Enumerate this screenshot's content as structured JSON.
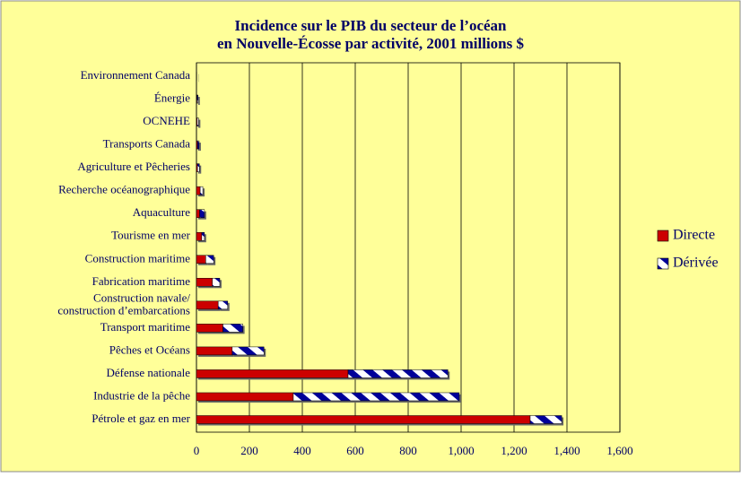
{
  "chart_data": {
    "type": "hbar_stacked",
    "title": "Incidence sur le PIB du secteur de l’océan\nen Nouvelle-Écosse par activité, 2001 millions $",
    "categories": [
      "Environnement Canada",
      "Énergie",
      "OCNEHE",
      "Transports Canada",
      "Agriculture et Pêcheries",
      "Recherche océanographique",
      "Aquaculture",
      "Tourisme en mer",
      "Construction maritime",
      "Fabrication maritime",
      "Construction navale/\nconstruction d’embarcations",
      "Transport maritime",
      "Pêches et Océans",
      "Défense nationale",
      "Industrie de la pêche",
      "Pétrole et gaz en mer"
    ],
    "series": [
      {
        "name": "Directe",
        "color": "#cc0000",
        "pattern": "solid",
        "values": [
          0,
          2,
          3,
          4,
          4,
          14,
          12,
          20,
          35,
          60,
          82,
          100,
          135,
          573,
          366,
          1261
        ]
      },
      {
        "name": "Dérivée",
        "color": "#000099",
        "pattern": "stripes",
        "values": [
          1,
          4,
          5,
          6,
          7,
          10,
          18,
          10,
          30,
          28,
          36,
          75,
          120,
          377,
          627,
          119
        ]
      }
    ],
    "xlim": [
      0,
      1600
    ],
    "xticks": [
      0,
      200,
      400,
      600,
      800,
      {
        "value": 1000,
        "label": "1,000"
      },
      {
        "value": 1200,
        "label": "1,200"
      },
      {
        "value": 1400,
        "label": "1,400"
      },
      {
        "value": 1600,
        "label": "1,600"
      }
    ],
    "grid": true,
    "legend": "right"
  }
}
